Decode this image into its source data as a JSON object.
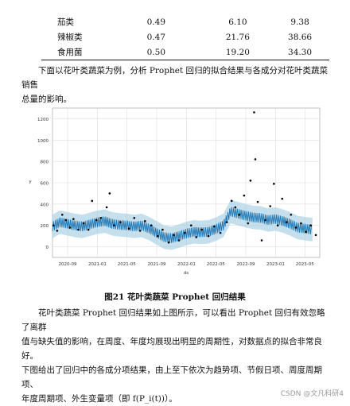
{
  "table": {
    "rows": [
      {
        "name": "茄类",
        "v1": "0.49",
        "v2": "6.10",
        "v3": "9.38"
      },
      {
        "name": "辣椒类",
        "v1": "0.47",
        "v2": "21.76",
        "v3": "38.66"
      },
      {
        "name": "食用菌",
        "v1": "0.50",
        "v2": "19.20",
        "v3": "34.30"
      }
    ]
  },
  "intro": {
    "line1": "下面以花叶类蔬菜为例，分析 Prophet 回归的拟合结果与各成分对花叶类蔬菜销售",
    "line2": "总量的影响。"
  },
  "chart_data": {
    "type": "line",
    "title": "",
    "xlabel": "ds",
    "ylabel": "y",
    "x_ticks": [
      "2020-09",
      "2021-01",
      "2021-05",
      "2021-09",
      "2022-01",
      "2022-05",
      "2022-09",
      "2023-01",
      "2023-05"
    ],
    "x_range": [
      "2020-07-01",
      "2023-07-01"
    ],
    "y_ticks": [
      0,
      200,
      400,
      600,
      800,
      1000,
      1200
    ],
    "ylim": [
      -100,
      1300
    ],
    "grid": true,
    "series": [
      {
        "role": "forecast",
        "color": "#1f77b4",
        "values": [
          {
            "x": "2020-07-01",
            "y": 190
          },
          {
            "x": "2020-08-01",
            "y": 230
          },
          {
            "x": "2020-09-01",
            "y": 215
          },
          {
            "x": "2020-10-01",
            "y": 200
          },
          {
            "x": "2020-11-01",
            "y": 190
          },
          {
            "x": "2020-12-01",
            "y": 210
          },
          {
            "x": "2021-01-01",
            "y": 230
          },
          {
            "x": "2021-02-01",
            "y": 240
          },
          {
            "x": "2021-03-01",
            "y": 215
          },
          {
            "x": "2021-04-01",
            "y": 205
          },
          {
            "x": "2021-05-01",
            "y": 200
          },
          {
            "x": "2021-06-01",
            "y": 190
          },
          {
            "x": "2021-07-01",
            "y": 200
          },
          {
            "x": "2021-08-01",
            "y": 170
          },
          {
            "x": "2021-09-01",
            "y": 130
          },
          {
            "x": "2021-10-01",
            "y": 90
          },
          {
            "x": "2021-11-01",
            "y": 80
          },
          {
            "x": "2021-12-01",
            "y": 100
          },
          {
            "x": "2022-01-01",
            "y": 125
          },
          {
            "x": "2022-02-01",
            "y": 140
          },
          {
            "x": "2022-03-01",
            "y": 135
          },
          {
            "x": "2022-04-01",
            "y": 140
          },
          {
            "x": "2022-05-01",
            "y": 165
          },
          {
            "x": "2022-06-01",
            "y": 200
          },
          {
            "x": "2022-07-01",
            "y": 330
          },
          {
            "x": "2022-08-01",
            "y": 310
          },
          {
            "x": "2022-09-01",
            "y": 290
          },
          {
            "x": "2022-10-01",
            "y": 275
          },
          {
            "x": "2022-11-01",
            "y": 270
          },
          {
            "x": "2022-12-01",
            "y": 250
          },
          {
            "x": "2023-01-01",
            "y": 260
          },
          {
            "x": "2023-02-01",
            "y": 240
          },
          {
            "x": "2023-03-01",
            "y": 215
          },
          {
            "x": "2023-04-01",
            "y": 180
          },
          {
            "x": "2023-05-01",
            "y": 170
          },
          {
            "x": "2023-06-01",
            "y": 160
          }
        ]
      },
      {
        "role": "observed",
        "color": "#000000",
        "values": [
          {
            "x": "2020-07-05",
            "y": 200
          },
          {
            "x": "2020-07-20",
            "y": 150
          },
          {
            "x": "2020-08-10",
            "y": 300
          },
          {
            "x": "2020-08-25",
            "y": 250
          },
          {
            "x": "2020-09-10",
            "y": 180
          },
          {
            "x": "2020-09-25",
            "y": 260
          },
          {
            "x": "2020-10-15",
            "y": 160
          },
          {
            "x": "2020-11-05",
            "y": 220
          },
          {
            "x": "2020-11-25",
            "y": 160
          },
          {
            "x": "2020-12-10",
            "y": 430
          },
          {
            "x": "2020-12-28",
            "y": 250
          },
          {
            "x": "2021-01-15",
            "y": 270
          },
          {
            "x": "2021-02-08",
            "y": 370
          },
          {
            "x": "2021-02-20",
            "y": 500
          },
          {
            "x": "2021-03-10",
            "y": 200
          },
          {
            "x": "2021-04-05",
            "y": 230
          },
          {
            "x": "2021-05-10",
            "y": 170
          },
          {
            "x": "2021-06-01",
            "y": 270
          },
          {
            "x": "2021-06-25",
            "y": 150
          },
          {
            "x": "2021-07-15",
            "y": 240
          },
          {
            "x": "2021-08-10",
            "y": 200
          },
          {
            "x": "2021-09-05",
            "y": 100
          },
          {
            "x": "2021-09-25",
            "y": 160
          },
          {
            "x": "2021-10-20",
            "y": 40
          },
          {
            "x": "2021-11-10",
            "y": 110
          },
          {
            "x": "2021-12-01",
            "y": 60
          },
          {
            "x": "2021-12-25",
            "y": 130
          },
          {
            "x": "2022-01-20",
            "y": 200
          },
          {
            "x": "2022-02-10",
            "y": 90
          },
          {
            "x": "2022-03-05",
            "y": 160
          },
          {
            "x": "2022-04-01",
            "y": 100
          },
          {
            "x": "2022-04-25",
            "y": 190
          },
          {
            "x": "2022-05-20",
            "y": 130
          },
          {
            "x": "2022-06-15",
            "y": 230
          },
          {
            "x": "2022-07-05",
            "y": 430
          },
          {
            "x": "2022-07-20",
            "y": 370
          },
          {
            "x": "2022-08-05",
            "y": 300
          },
          {
            "x": "2022-08-25",
            "y": 480
          },
          {
            "x": "2022-09-10",
            "y": 220
          },
          {
            "x": "2022-09-20",
            "y": 620
          },
          {
            "x": "2022-10-05",
            "y": 1260
          },
          {
            "x": "2022-10-10",
            "y": 820
          },
          {
            "x": "2022-10-20",
            "y": 420
          },
          {
            "x": "2022-11-05",
            "y": 60
          },
          {
            "x": "2022-11-20",
            "y": 250
          },
          {
            "x": "2022-12-10",
            "y": 380
          },
          {
            "x": "2022-12-25",
            "y": 590
          },
          {
            "x": "2023-01-10",
            "y": 200
          },
          {
            "x": "2023-01-28",
            "y": 450
          },
          {
            "x": "2023-02-15",
            "y": 230
          },
          {
            "x": "2023-03-05",
            "y": 300
          },
          {
            "x": "2023-03-25",
            "y": 180
          },
          {
            "x": "2023-04-15",
            "y": 220
          },
          {
            "x": "2023-05-05",
            "y": 140
          },
          {
            "x": "2023-05-25",
            "y": 200
          },
          {
            "x": "2023-06-15",
            "y": 110
          }
        ]
      }
    ]
  },
  "figure_caption": "图21 花叶类蔬菜 Prophet 回归结果",
  "body": {
    "line1": "花叶类蔬菜 Prophet 回归结果如上图所示，可以看出 Prophet 回归有效忽略了离群",
    "line2": "值与缺失值的影响，在周度、年度均展现出明显的周期性，对数据点的拟合非常良好。",
    "line3": "下图给出了回归中的各成分项结果，由上至下依次为趋势项、节假日项、周度周期项、",
    "line4": "年度周期项、外生变量项（即 f(P_i(t))）。"
  },
  "watermark": "CSDN @文凡科研4"
}
